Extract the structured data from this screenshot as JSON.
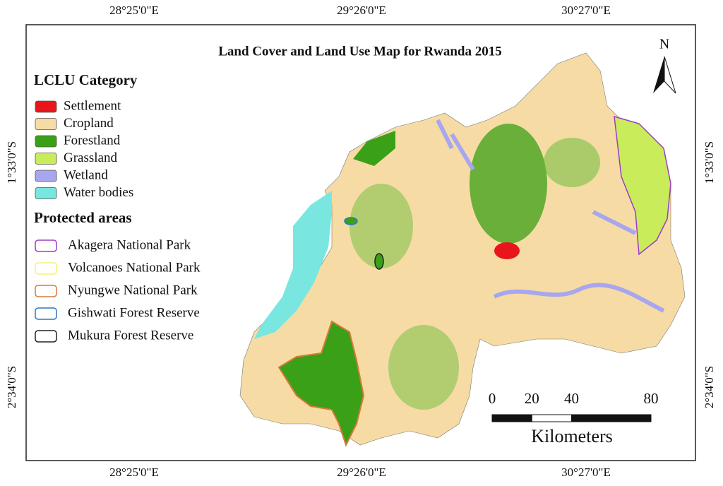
{
  "title": "Land Cover and Land Use Map for Rwanda 2015",
  "north": "N",
  "legend": {
    "category_title": "LCLU Category",
    "categories": [
      {
        "label": "Settlement",
        "color": "#e8161b"
      },
      {
        "label": "Cropland",
        "color": "#f6dca4"
      },
      {
        "label": "Forestland",
        "color": "#3aa017"
      },
      {
        "label": "Grassland",
        "color": "#c9ec5a"
      },
      {
        "label": "Wetland",
        "color": "#a7a6ee"
      },
      {
        "label": "Water bodies",
        "color": "#7ae6e0"
      }
    ],
    "protected_title": "Protected areas",
    "protected": [
      {
        "label": "Akagera National Park",
        "color": "#9b3dc8"
      },
      {
        "label": "Volcanoes National Park",
        "color": "#f5f07a"
      },
      {
        "label": "Nyungwe National Park",
        "color": "#d8793a"
      },
      {
        "label": "Gishwati Forest Reserve",
        "color": "#2d76c0"
      },
      {
        "label": "Mukura Forest Reserve",
        "color": "#222222"
      }
    ]
  },
  "coordinates": {
    "top": [
      "28°25'0\"E",
      "29°26'0\"E",
      "30°27'0\"E"
    ],
    "bottom": [
      "28°25'0\"E",
      "29°26'0\"E",
      "30°27'0\"E"
    ],
    "left": [
      "1°33'0\"S",
      "2°34'0\"S"
    ],
    "right": [
      "1°33'0\"S",
      "2°34'0\"S"
    ]
  },
  "scale": {
    "ticks": [
      0,
      20,
      40,
      80
    ],
    "unit": "Kilometers"
  }
}
